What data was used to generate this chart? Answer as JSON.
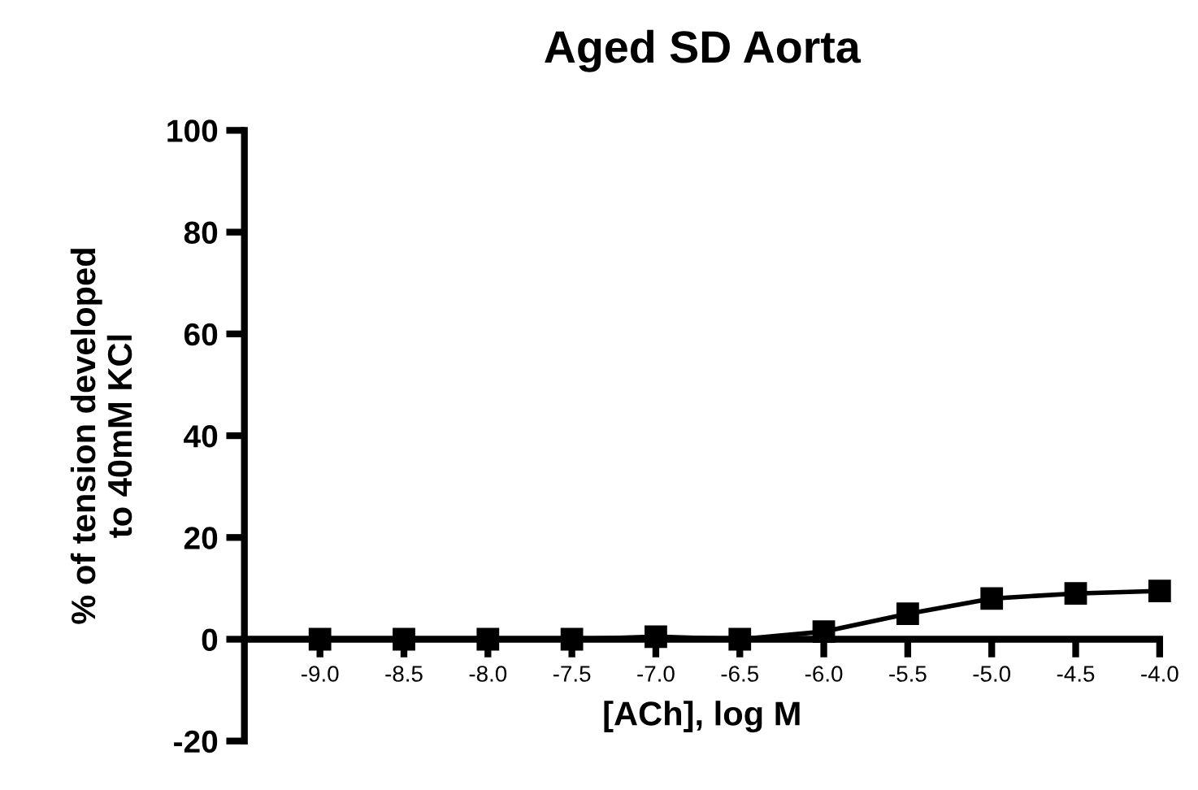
{
  "chart_data": {
    "type": "line",
    "title": "Aged SD Aorta",
    "xlabel": "[ACh], log M",
    "ylabel": "% of tension developed\nto 40mM KCl",
    "x": [
      -9.0,
      -8.5,
      -8.0,
      -7.5,
      -7.0,
      -6.5,
      -6.0,
      -5.5,
      -5.0,
      -4.5,
      -4.0
    ],
    "series": [
      {
        "color": "#000000",
        "values": [
          0,
          0,
          0,
          0,
          0.5,
          0,
          1.5,
          5,
          8,
          9,
          9.5
        ]
      }
    ],
    "xlim": [
      -9.45,
      -4.0
    ],
    "xticks": [
      {
        "value": -9.0,
        "label": "-9.0"
      },
      {
        "value": -8.5,
        "label": "-8.5"
      },
      {
        "value": -8.0,
        "label": "-8.0"
      },
      {
        "value": -7.5,
        "label": "-7.5"
      },
      {
        "value": -7.0,
        "label": "-7.0"
      },
      {
        "value": -6.5,
        "label": "-6.5"
      },
      {
        "value": -6.0,
        "label": "-6.0"
      },
      {
        "value": -5.5,
        "label": "-5.5"
      },
      {
        "value": -5.0,
        "label": "-5.0"
      },
      {
        "value": -4.5,
        "label": "-4.5"
      },
      {
        "value": -4.0,
        "label": "-4.0"
      }
    ],
    "ylim": [
      -20,
      100
    ],
    "yticks": [
      -20,
      0,
      20,
      40,
      60,
      80,
      100
    ],
    "marker": "square",
    "line_style": "solid",
    "grid": false,
    "legend": false
  }
}
